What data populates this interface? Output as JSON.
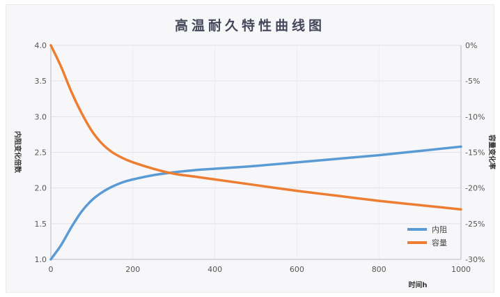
{
  "chart_data": {
    "type": "line",
    "title": "高温耐久特性曲线图",
    "xlabel": "时间h",
    "ylabel_left": "内阻变化倍数",
    "ylabel_right": "容量变化率",
    "xlim": [
      0,
      1000
    ],
    "ylim_left": [
      1.0,
      4.0
    ],
    "ylim_right": [
      -30,
      0
    ],
    "x_ticks": [
      "0",
      "200",
      "400",
      "600",
      "800",
      "1000"
    ],
    "y_left_ticks": [
      "1.0",
      "1.5",
      "2.0",
      "2.5",
      "3.0",
      "3.5",
      "4.0"
    ],
    "y_right_ticks": [
      "-30%",
      "-25%",
      "-20%",
      "-15%",
      "-10%",
      "-5%",
      "0%"
    ],
    "grid": true,
    "legend_position": "bottom-right",
    "series": [
      {
        "name": "内阻",
        "axis": "left",
        "color": "#5b9bd5",
        "x": [
          0,
          25,
          50,
          75,
          100,
          125,
          150,
          175,
          200,
          250,
          300,
          350,
          400,
          500,
          600,
          700,
          800,
          900,
          1000
        ],
        "y": [
          1.0,
          1.2,
          1.45,
          1.67,
          1.83,
          1.94,
          2.02,
          2.08,
          2.12,
          2.18,
          2.22,
          2.25,
          2.27,
          2.31,
          2.36,
          2.41,
          2.46,
          2.52,
          2.58
        ]
      },
      {
        "name": "容量",
        "axis": "right",
        "color": "#ed7d31",
        "x": [
          0,
          25,
          50,
          75,
          100,
          125,
          150,
          175,
          200,
          250,
          300,
          350,
          400,
          500,
          600,
          700,
          800,
          900,
          1000
        ],
        "y": [
          0,
          -3.0,
          -6.5,
          -9.5,
          -12.0,
          -13.8,
          -15.0,
          -15.8,
          -16.4,
          -17.3,
          -18.0,
          -18.4,
          -18.8,
          -19.6,
          -20.4,
          -21.1,
          -21.8,
          -22.4,
          -23.0
        ]
      }
    ]
  }
}
